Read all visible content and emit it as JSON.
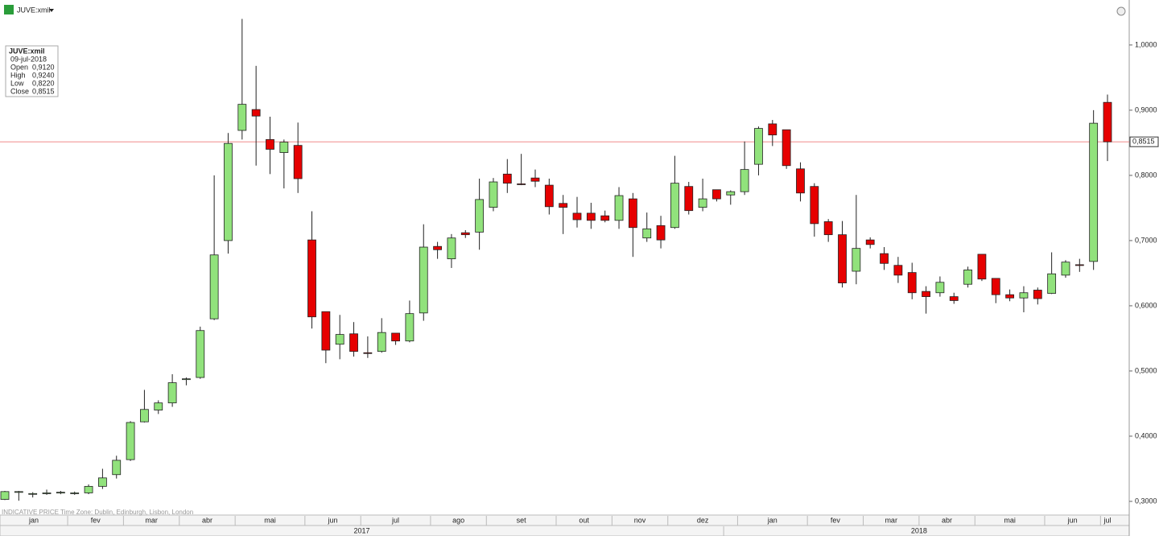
{
  "chart_data": {
    "type": "candlestick",
    "symbol": "JUVE:xmil",
    "footer": "INDICATIVE PRICE   Time Zone: Dublin, Edinburgh, Lisbon, London",
    "info_box": {
      "title": "JUVE:xmil",
      "date": "09-jul-2018",
      "rows": [
        [
          "Open",
          "0,9120"
        ],
        [
          "High",
          "0,9240"
        ],
        [
          "Low",
          "0,8220"
        ],
        [
          "Close",
          "0,8515"
        ]
      ]
    },
    "last_price": {
      "value": 0.8515,
      "label": "0,8515"
    },
    "up_color": "#91e27c",
    "down_color": "#e60000",
    "last_price_color": "#f08a8a",
    "ylim": [
      0.279,
      1.069
    ],
    "yticks": [
      {
        "value": 0.3,
        "label": "0,3000"
      },
      {
        "value": 0.4,
        "label": "0,4000"
      },
      {
        "value": 0.5,
        "label": "0,5000"
      },
      {
        "value": 0.6,
        "label": "0,6000"
      },
      {
        "value": 0.7,
        "label": "0,7000"
      },
      {
        "value": 0.8,
        "label": "0,8000"
      },
      {
        "value": 0.9,
        "label": "0,9000"
      },
      {
        "value": 1,
        "label": "1,0000"
      }
    ],
    "categories": [
      "jan",
      null,
      null,
      null,
      null,
      "fev",
      null,
      null,
      null,
      "mar",
      null,
      null,
      null,
      "abr",
      null,
      null,
      null,
      "mai",
      null,
      null,
      null,
      null,
      "jun",
      null,
      null,
      null,
      "jul",
      null,
      null,
      null,
      null,
      "ago",
      null,
      null,
      null,
      "set",
      null,
      null,
      null,
      null,
      "out",
      null,
      null,
      null,
      "nov",
      null,
      null,
      null,
      "dez",
      null,
      null,
      null,
      null,
      "jan",
      null,
      null,
      null,
      null,
      "fev",
      null,
      null,
      null,
      "mar",
      null,
      null,
      null,
      "abr",
      null,
      null,
      null,
      "mai",
      null,
      null,
      null,
      null,
      "jun",
      null,
      null,
      null,
      "jul",
      null
    ],
    "years": [
      "2017",
      null,
      null,
      null,
      null,
      null,
      null,
      null,
      null,
      null,
      null,
      null,
      null,
      null,
      null,
      null,
      null,
      null,
      null,
      null,
      null,
      null,
      null,
      null,
      null,
      null,
      null,
      null,
      null,
      null,
      null,
      null,
      null,
      null,
      null,
      null,
      null,
      null,
      null,
      null,
      null,
      null,
      null,
      null,
      null,
      null,
      null,
      null,
      null,
      null,
      null,
      null,
      "2018",
      null,
      null,
      null,
      null,
      null,
      null,
      null,
      null,
      null,
      null,
      null,
      null,
      null,
      null,
      null,
      null,
      null,
      null,
      null,
      null,
      null,
      null,
      null,
      null,
      null,
      null,
      null
    ],
    "open": [
      0.303,
      0.315,
      0.311,
      0.312,
      0.313,
      0.312,
      0.313,
      0.323,
      0.341,
      0.364,
      0.422,
      0.44,
      0.451,
      0.487,
      0.49,
      0.58,
      0.7,
      0.869,
      0.901,
      0.855,
      0.835,
      0.846,
      0.701,
      0.591,
      0.541,
      0.557,
      0.528,
      0.53,
      0.558,
      0.546,
      0.589,
      0.691,
      0.672,
      0.712,
      0.713,
      0.751,
      0.802,
      0.787,
      0.796,
      0.785,
      0.757,
      0.742,
      0.742,
      0.738,
      0.731,
      0.764,
      0.704,
      0.723,
      0.72,
      0.783,
      0.751,
      0.778,
      0.77,
      0.775,
      0.817,
      0.879,
      0.87,
      0.81,
      0.783,
      0.729,
      0.709,
      0.653,
      0.701,
      0.68,
      0.662,
      0.651,
      0.622,
      0.62,
      0.614,
      0.633,
      0.679,
      0.642,
      0.617,
      0.612,
      0.624,
      0.619,
      0.647,
      0.663,
      0.668,
      0.912
    ],
    "high": [
      0.316,
      0.316,
      0.314,
      0.318,
      0.316,
      0.315,
      0.326,
      0.35,
      0.37,
      0.423,
      0.471,
      0.455,
      0.495,
      0.49,
      0.568,
      0.8,
      0.865,
      1.04,
      0.968,
      0.89,
      0.855,
      0.881,
      0.745,
      0.591,
      0.586,
      0.575,
      0.553,
      0.581,
      0.558,
      0.608,
      0.725,
      0.698,
      0.71,
      0.716,
      0.795,
      0.796,
      0.825,
      0.833,
      0.809,
      0.795,
      0.77,
      0.767,
      0.758,
      0.746,
      0.782,
      0.773,
      0.743,
      0.738,
      0.83,
      0.79,
      0.795,
      0.778,
      0.777,
      0.852,
      0.875,
      0.885,
      0.87,
      0.82,
      0.788,
      0.733,
      0.73,
      0.77,
      0.705,
      0.69,
      0.675,
      0.666,
      0.63,
      0.645,
      0.62,
      0.66,
      0.679,
      0.642,
      0.625,
      0.63,
      0.628,
      0.682,
      0.67,
      0.672,
      0.9,
      0.924
    ],
    "low": [
      0.302,
      0.301,
      0.306,
      0.31,
      0.311,
      0.31,
      0.311,
      0.319,
      0.335,
      0.362,
      0.421,
      0.434,
      0.445,
      0.478,
      0.488,
      0.578,
      0.68,
      0.855,
      0.815,
      0.802,
      0.78,
      0.773,
      0.565,
      0.512,
      0.518,
      0.522,
      0.52,
      0.528,
      0.54,
      0.544,
      0.577,
      0.672,
      0.658,
      0.704,
      0.686,
      0.745,
      0.773,
      0.785,
      0.782,
      0.74,
      0.71,
      0.72,
      0.718,
      0.728,
      0.718,
      0.675,
      0.698,
      0.688,
      0.718,
      0.74,
      0.745,
      0.76,
      0.755,
      0.77,
      0.8,
      0.845,
      0.81,
      0.76,
      0.706,
      0.698,
      0.628,
      0.633,
      0.688,
      0.655,
      0.635,
      0.61,
      0.588,
      0.614,
      0.603,
      0.628,
      0.638,
      0.604,
      0.607,
      0.59,
      0.602,
      0.618,
      0.643,
      0.652,
      0.655,
      0.822
    ],
    "close": [
      0.315,
      0.315,
      0.312,
      0.313,
      0.314,
      0.313,
      0.323,
      0.336,
      0.363,
      0.421,
      0.441,
      0.451,
      0.482,
      0.488,
      0.562,
      0.678,
      0.849,
      0.909,
      0.891,
      0.84,
      0.851,
      0.795,
      0.583,
      0.532,
      0.556,
      0.53,
      0.527,
      0.559,
      0.546,
      0.588,
      0.69,
      0.686,
      0.704,
      0.709,
      0.763,
      0.79,
      0.788,
      0.786,
      0.791,
      0.752,
      0.751,
      0.732,
      0.731,
      0.731,
      0.769,
      0.72,
      0.718,
      0.701,
      0.788,
      0.746,
      0.764,
      0.764,
      0.775,
      0.809,
      0.872,
      0.862,
      0.815,
      0.773,
      0.726,
      0.709,
      0.635,
      0.688,
      0.694,
      0.665,
      0.647,
      0.62,
      0.614,
      0.636,
      0.608,
      0.655,
      0.641,
      0.617,
      0.612,
      0.62,
      0.611,
      0.649,
      0.667,
      0.662,
      0.88,
      0.8515
    ]
  }
}
